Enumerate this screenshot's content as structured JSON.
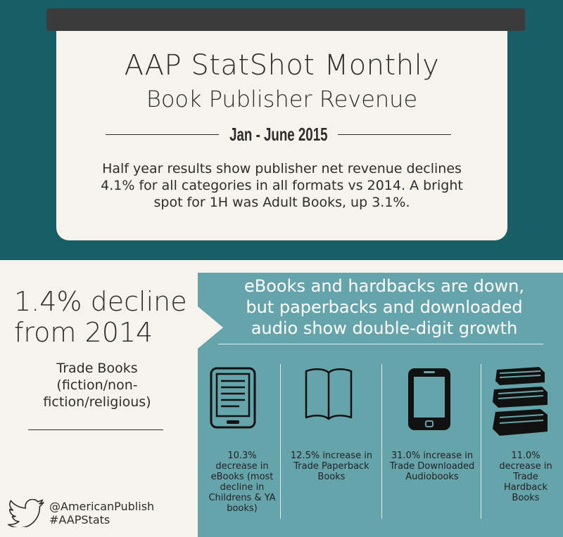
{
  "header": {
    "title": "AAP StatShot Monthly",
    "subtitle": "Book Publisher Revenue",
    "date": "Jan - June 2015",
    "description": "Half year results show publisher net revenue declines 4.1% for all categories in all formats vs 2014.  A bright spot for 1H was Adult Books, up 3.1%."
  },
  "trade": {
    "headline_line1": "1.4% decline",
    "headline_line2": "from 2014",
    "category_line1": "Trade Books",
    "category_line2": "(fiction/non-",
    "category_line3": "fiction/religious)"
  },
  "panel": {
    "heading_line1": "eBooks and hardbacks are down,",
    "heading_line2": "but paperbacks and downloaded",
    "heading_line3": "audio show double-digit growth",
    "bg_color": "#66a4ab"
  },
  "stats": [
    {
      "icon": "ereader-icon",
      "text": "10.3% decrease in eBooks (most decline in Childrens & YA books)"
    },
    {
      "icon": "open-book-icon",
      "text": "12.5% increase in Trade Paperback Books"
    },
    {
      "icon": "smartphone-icon",
      "text": "31.0% increase in Trade Downloaded Audiobooks"
    },
    {
      "icon": "book-stack-icon",
      "text": "11.0% decrease in Trade Hardback Books"
    }
  ],
  "social": {
    "handle": "@AmericanPublish",
    "hashtag": "#AAPStats"
  },
  "colors": {
    "teal_dark": "#195d66",
    "teal_light": "#66a4ab",
    "cream": "#f5f3ec",
    "charcoal": "#3b3b3b"
  }
}
